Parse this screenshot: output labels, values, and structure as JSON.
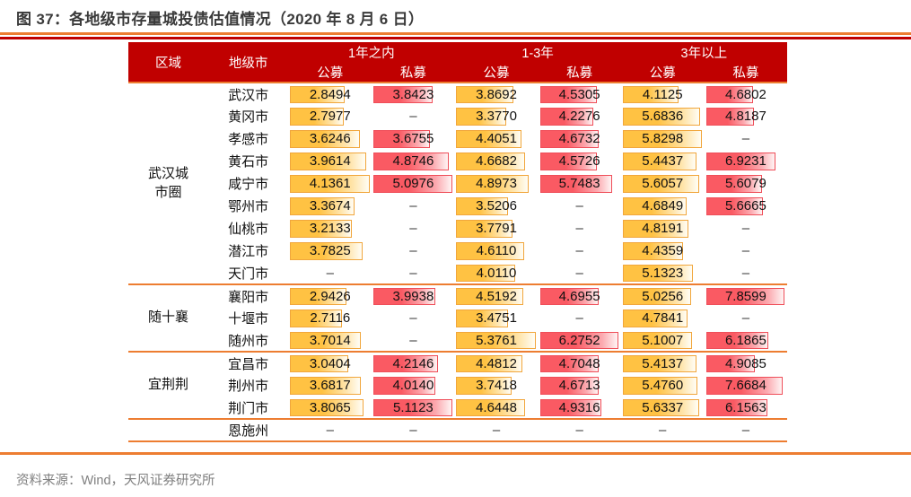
{
  "title": "图 37：各地级市存量城投债估值情况（2020 年 8 月 6 日）",
  "source": "资料来源：Wind，天风证券研究所",
  "colors": {
    "header_bg": "#c00000",
    "rule_orange": "#ed7d31",
    "rule_red": "#c00000",
    "public_bar": "#ffc243",
    "private_bar": "#fa5a63"
  },
  "table": {
    "dash": "–",
    "region_header": "区域",
    "city_header": "地级市",
    "groups": [
      {
        "label": "1年之内",
        "subs": [
          "公募",
          "私募"
        ]
      },
      {
        "label": "1-3年",
        "subs": [
          "公募",
          "私募"
        ]
      },
      {
        "label": "3年以上",
        "subs": [
          "公募",
          "私募"
        ]
      }
    ],
    "regions": [
      {
        "name": "武汉城市圈",
        "rows": [
          {
            "city": "武汉市",
            "values": [
              "2.8494",
              "3.8423",
              "3.8692",
              "4.5305",
              "4.1125",
              "4.6802"
            ]
          },
          {
            "city": "黄冈市",
            "values": [
              "2.7977",
              null,
              "3.3770",
              "4.2276",
              "5.6836",
              "4.8187"
            ]
          },
          {
            "city": "孝感市",
            "values": [
              "3.6246",
              "3.6755",
              "4.4051",
              "4.6732",
              "5.8298",
              null
            ]
          },
          {
            "city": "黄石市",
            "values": [
              "3.9614",
              "4.8746",
              "4.6682",
              "4.5726",
              "5.4437",
              "6.9231"
            ]
          },
          {
            "city": "咸宁市",
            "values": [
              "4.1361",
              "5.0976",
              "4.8973",
              "5.7483",
              "5.6057",
              "5.6079"
            ]
          },
          {
            "city": "鄂州市",
            "values": [
              "3.3674",
              null,
              "3.5206",
              null,
              "4.6849",
              "5.6665"
            ]
          },
          {
            "city": "仙桃市",
            "values": [
              "3.2133",
              null,
              "3.7791",
              null,
              "4.8191",
              null
            ]
          },
          {
            "city": "潜江市",
            "values": [
              "3.7825",
              null,
              "4.6110",
              null,
              "4.4359",
              null
            ]
          },
          {
            "city": "天门市",
            "values": [
              null,
              null,
              "4.0110",
              null,
              "5.1323",
              null
            ]
          }
        ]
      },
      {
        "name": "随十襄",
        "rows": [
          {
            "city": "襄阳市",
            "values": [
              "2.9426",
              "3.9938",
              "4.5192",
              "4.6955",
              "5.0256",
              "7.8599"
            ]
          },
          {
            "city": "十堰市",
            "values": [
              "2.7116",
              null,
              "3.4751",
              null,
              "4.7841",
              null
            ]
          },
          {
            "city": "随州市",
            "values": [
              "3.7014",
              null,
              "5.3761",
              "6.2752",
              "5.1007",
              "6.1865"
            ]
          }
        ]
      },
      {
        "name": "宜荆荆",
        "rows": [
          {
            "city": "宜昌市",
            "values": [
              "3.0404",
              "4.2146",
              "4.4812",
              "4.7048",
              "5.4137",
              "4.9085"
            ]
          },
          {
            "city": "荆州市",
            "values": [
              "3.6817",
              "4.0140",
              "3.7418",
              "4.6713",
              "5.4760",
              "7.6684"
            ]
          },
          {
            "city": "荆门市",
            "values": [
              "3.8065",
              "5.1123",
              "4.6448",
              "4.9316",
              "5.6337",
              "6.1563"
            ]
          }
        ]
      },
      {
        "name": "",
        "rows": [
          {
            "city": "恩施州",
            "values": [
              null,
              null,
              null,
              null,
              null,
              null
            ]
          }
        ]
      }
    ]
  }
}
